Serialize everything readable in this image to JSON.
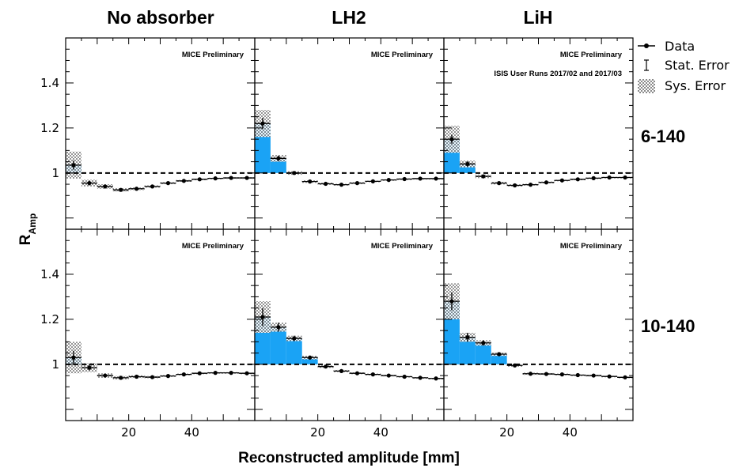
{
  "chart_data": {
    "type": "bar",
    "column_titles": [
      "No absorber",
      "LH2",
      "LiH"
    ],
    "row_labels": [
      "6-140",
      "10-140"
    ],
    "ylabel_main": "R",
    "ylabel_sub": "Amp",
    "xlabel": "Reconstructed amplitude [mm]",
    "annotation": "MICE Preliminary",
    "extra_annotation": "ISIS User Runs 2017/02 and 2017/03",
    "x_ticks": [
      20,
      40
    ],
    "y_ticks": [
      1,
      1.2,
      1.4
    ],
    "xlim": [
      0,
      60
    ],
    "ylim": [
      0.75,
      1.6
    ],
    "reference_line": 1.0,
    "legend": [
      {
        "label": "Data",
        "marker": "point-with-line"
      },
      {
        "label": "Stat. Error",
        "marker": "error-bar"
      },
      {
        "label": "Sys. Error",
        "marker": "checkered-box"
      }
    ],
    "colors": {
      "fill": "#1aa3f5",
      "marker": "#000000"
    },
    "panels": [
      {
        "row": 0,
        "col": 0,
        "annotation": "MICE Preliminary",
        "extra_annotation": "",
        "bins": [
          {
            "x0": 0,
            "x1": 5,
            "y": 1.035,
            "stat": 0.02,
            "sys": 0.06
          },
          {
            "x0": 5,
            "x1": 10,
            "y": 0.955,
            "stat": 0.01,
            "sys": 0.015
          },
          {
            "x0": 10,
            "x1": 15,
            "y": 0.94,
            "stat": 0.006,
            "sys": 0.01
          },
          {
            "x0": 15,
            "x1": 20,
            "y": 0.925,
            "stat": 0.005,
            "sys": 0.008
          },
          {
            "x0": 20,
            "x1": 25,
            "y": 0.93,
            "stat": 0.004,
            "sys": 0.006
          },
          {
            "x0": 25,
            "x1": 30,
            "y": 0.94,
            "stat": 0.004,
            "sys": 0.005
          },
          {
            "x0": 30,
            "x1": 35,
            "y": 0.955,
            "stat": 0.004,
            "sys": 0.004
          },
          {
            "x0": 35,
            "x1": 40,
            "y": 0.965,
            "stat": 0.003,
            "sys": 0.004
          },
          {
            "x0": 40,
            "x1": 45,
            "y": 0.972,
            "stat": 0.003,
            "sys": 0.003
          },
          {
            "x0": 45,
            "x1": 50,
            "y": 0.976,
            "stat": 0.003,
            "sys": 0.003
          },
          {
            "x0": 50,
            "x1": 55,
            "y": 0.978,
            "stat": 0.003,
            "sys": 0.003
          },
          {
            "x0": 55,
            "x1": 60,
            "y": 0.978,
            "stat": 0.003,
            "sys": 0.003
          }
        ]
      },
      {
        "row": 0,
        "col": 1,
        "annotation": "MICE Preliminary",
        "extra_annotation": "",
        "bins": [
          {
            "x0": 0,
            "x1": 5,
            "y": 1.22,
            "stat": 0.025,
            "sys": 0.06
          },
          {
            "x0": 5,
            "x1": 10,
            "y": 1.065,
            "stat": 0.012,
            "sys": 0.015
          },
          {
            "x0": 10,
            "x1": 15,
            "y": 1.0,
            "stat": 0.007,
            "sys": 0.008
          },
          {
            "x0": 15,
            "x1": 20,
            "y": 0.962,
            "stat": 0.005,
            "sys": 0.006
          },
          {
            "x0": 20,
            "x1": 25,
            "y": 0.952,
            "stat": 0.004,
            "sys": 0.005
          },
          {
            "x0": 25,
            "x1": 30,
            "y": 0.948,
            "stat": 0.004,
            "sys": 0.004
          },
          {
            "x0": 30,
            "x1": 35,
            "y": 0.955,
            "stat": 0.004,
            "sys": 0.004
          },
          {
            "x0": 35,
            "x1": 40,
            "y": 0.963,
            "stat": 0.003,
            "sys": 0.003
          },
          {
            "x0": 40,
            "x1": 45,
            "y": 0.969,
            "stat": 0.003,
            "sys": 0.003
          },
          {
            "x0": 45,
            "x1": 50,
            "y": 0.973,
            "stat": 0.003,
            "sys": 0.003
          },
          {
            "x0": 50,
            "x1": 55,
            "y": 0.975,
            "stat": 0.003,
            "sys": 0.003
          },
          {
            "x0": 55,
            "x1": 60,
            "y": 0.975,
            "stat": 0.003,
            "sys": 0.003
          }
        ]
      },
      {
        "row": 0,
        "col": 2,
        "annotation": "MICE Preliminary",
        "extra_annotation": "ISIS User Runs 2017/02 and 2017/03",
        "bins": [
          {
            "x0": 0,
            "x1": 5,
            "y": 1.15,
            "stat": 0.02,
            "sys": 0.06
          },
          {
            "x0": 5,
            "x1": 10,
            "y": 1.04,
            "stat": 0.012,
            "sys": 0.015
          },
          {
            "x0": 10,
            "x1": 15,
            "y": 0.985,
            "stat": 0.007,
            "sys": 0.008
          },
          {
            "x0": 15,
            "x1": 20,
            "y": 0.955,
            "stat": 0.005,
            "sys": 0.006
          },
          {
            "x0": 20,
            "x1": 25,
            "y": 0.945,
            "stat": 0.004,
            "sys": 0.005
          },
          {
            "x0": 25,
            "x1": 30,
            "y": 0.948,
            "stat": 0.004,
            "sys": 0.004
          },
          {
            "x0": 30,
            "x1": 35,
            "y": 0.958,
            "stat": 0.004,
            "sys": 0.004
          },
          {
            "x0": 35,
            "x1": 40,
            "y": 0.967,
            "stat": 0.003,
            "sys": 0.003
          },
          {
            "x0": 40,
            "x1": 45,
            "y": 0.972,
            "stat": 0.003,
            "sys": 0.003
          },
          {
            "x0": 45,
            "x1": 50,
            "y": 0.977,
            "stat": 0.003,
            "sys": 0.003
          },
          {
            "x0": 50,
            "x1": 55,
            "y": 0.98,
            "stat": 0.003,
            "sys": 0.003
          },
          {
            "x0": 55,
            "x1": 60,
            "y": 0.98,
            "stat": 0.003,
            "sys": 0.003
          }
        ]
      },
      {
        "row": 1,
        "col": 0,
        "annotation": "MICE Preliminary",
        "extra_annotation": "",
        "bins": [
          {
            "x0": 0,
            "x1": 5,
            "y": 1.03,
            "stat": 0.03,
            "sys": 0.07
          },
          {
            "x0": 5,
            "x1": 10,
            "y": 0.985,
            "stat": 0.012,
            "sys": 0.02
          },
          {
            "x0": 10,
            "x1": 15,
            "y": 0.95,
            "stat": 0.007,
            "sys": 0.01
          },
          {
            "x0": 15,
            "x1": 20,
            "y": 0.94,
            "stat": 0.005,
            "sys": 0.008
          },
          {
            "x0": 20,
            "x1": 25,
            "y": 0.945,
            "stat": 0.004,
            "sys": 0.006
          },
          {
            "x0": 25,
            "x1": 30,
            "y": 0.943,
            "stat": 0.004,
            "sys": 0.005
          },
          {
            "x0": 30,
            "x1": 35,
            "y": 0.948,
            "stat": 0.004,
            "sys": 0.004
          },
          {
            "x0": 35,
            "x1": 40,
            "y": 0.955,
            "stat": 0.003,
            "sys": 0.004
          },
          {
            "x0": 40,
            "x1": 45,
            "y": 0.96,
            "stat": 0.003,
            "sys": 0.003
          },
          {
            "x0": 45,
            "x1": 50,
            "y": 0.962,
            "stat": 0.003,
            "sys": 0.003
          },
          {
            "x0": 50,
            "x1": 55,
            "y": 0.962,
            "stat": 0.003,
            "sys": 0.003
          },
          {
            "x0": 55,
            "x1": 60,
            "y": 0.96,
            "stat": 0.003,
            "sys": 0.003
          }
        ]
      },
      {
        "row": 1,
        "col": 1,
        "annotation": "MICE Preliminary",
        "extra_annotation": "",
        "bins": [
          {
            "x0": 0,
            "x1": 5,
            "y": 1.21,
            "stat": 0.04,
            "sys": 0.07
          },
          {
            "x0": 5,
            "x1": 10,
            "y": 1.165,
            "stat": 0.02,
            "sys": 0.02
          },
          {
            "x0": 10,
            "x1": 15,
            "y": 1.115,
            "stat": 0.012,
            "sys": 0.012
          },
          {
            "x0": 15,
            "x1": 20,
            "y": 1.03,
            "stat": 0.008,
            "sys": 0.008
          },
          {
            "x0": 20,
            "x1": 25,
            "y": 0.99,
            "stat": 0.006,
            "sys": 0.006
          },
          {
            "x0": 25,
            "x1": 30,
            "y": 0.97,
            "stat": 0.005,
            "sys": 0.005
          },
          {
            "x0": 30,
            "x1": 35,
            "y": 0.96,
            "stat": 0.004,
            "sys": 0.004
          },
          {
            "x0": 35,
            "x1": 40,
            "y": 0.955,
            "stat": 0.004,
            "sys": 0.004
          },
          {
            "x0": 40,
            "x1": 45,
            "y": 0.95,
            "stat": 0.003,
            "sys": 0.003
          },
          {
            "x0": 45,
            "x1": 50,
            "y": 0.945,
            "stat": 0.003,
            "sys": 0.003
          },
          {
            "x0": 50,
            "x1": 55,
            "y": 0.94,
            "stat": 0.003,
            "sys": 0.003
          },
          {
            "x0": 55,
            "x1": 60,
            "y": 0.937,
            "stat": 0.003,
            "sys": 0.003
          }
        ]
      },
      {
        "row": 1,
        "col": 2,
        "annotation": "MICE Preliminary",
        "extra_annotation": "",
        "bins": [
          {
            "x0": 0,
            "x1": 5,
            "y": 1.28,
            "stat": 0.04,
            "sys": 0.08
          },
          {
            "x0": 5,
            "x1": 10,
            "y": 1.12,
            "stat": 0.02,
            "sys": 0.02
          },
          {
            "x0": 10,
            "x1": 15,
            "y": 1.095,
            "stat": 0.012,
            "sys": 0.012
          },
          {
            "x0": 15,
            "x1": 20,
            "y": 1.045,
            "stat": 0.008,
            "sys": 0.008
          },
          {
            "x0": 20,
            "x1": 25,
            "y": 0.995,
            "stat": 0.006,
            "sys": 0.006
          },
          {
            "x0": 25,
            "x1": 30,
            "y": 0.958,
            "stat": 0.005,
            "sys": 0.005
          },
          {
            "x0": 30,
            "x1": 35,
            "y": 0.957,
            "stat": 0.004,
            "sys": 0.004
          },
          {
            "x0": 35,
            "x1": 40,
            "y": 0.955,
            "stat": 0.004,
            "sys": 0.004
          },
          {
            "x0": 40,
            "x1": 45,
            "y": 0.952,
            "stat": 0.003,
            "sys": 0.003
          },
          {
            "x0": 45,
            "x1": 50,
            "y": 0.95,
            "stat": 0.003,
            "sys": 0.003
          },
          {
            "x0": 50,
            "x1": 55,
            "y": 0.946,
            "stat": 0.003,
            "sys": 0.003
          },
          {
            "x0": 55,
            "x1": 60,
            "y": 0.942,
            "stat": 0.003,
            "sys": 0.003
          }
        ]
      }
    ]
  }
}
